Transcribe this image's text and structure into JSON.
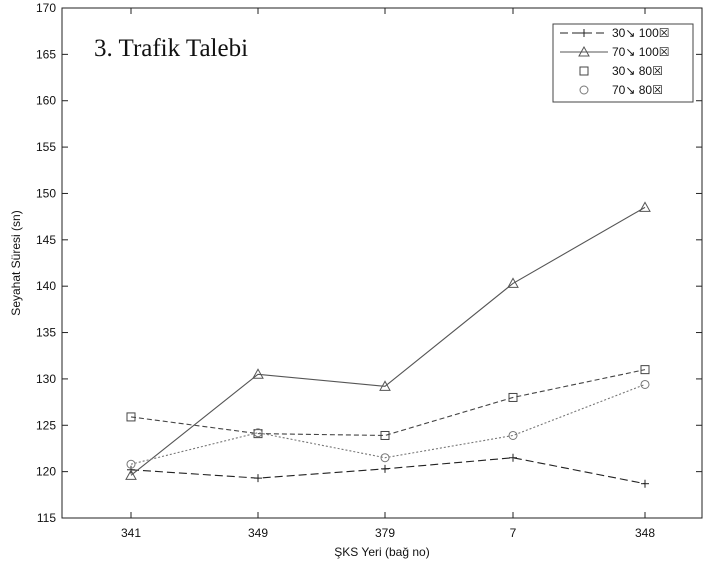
{
  "chart_data": {
    "type": "line",
    "title": "3. Trafik Talebi",
    "xlabel": "ŞKS Yeri (bağ no)",
    "ylabel": "Seyahat Süresi (sn)",
    "categories": [
      "341",
      "349",
      "379",
      "7",
      "348"
    ],
    "ylim": [
      115,
      170
    ],
    "yticks": [
      115,
      120,
      125,
      130,
      135,
      140,
      145,
      150,
      155,
      160,
      165,
      170
    ],
    "ytick_labels": [
      "115",
      "120",
      "125",
      "130",
      "135",
      "140",
      "145",
      "150",
      "155",
      "160",
      "165",
      "170"
    ],
    "grid": false,
    "legend_position": "top-right",
    "series": [
      {
        "name": "30↘ 100☒",
        "marker": "plus",
        "dash": "8,4",
        "color": "#222222",
        "values": [
          120.2,
          119.3,
          120.3,
          121.5,
          118.7
        ]
      },
      {
        "name": "70↘ 100☒",
        "marker": "triangle",
        "dash": "",
        "color": "#555555",
        "values": [
          119.6,
          130.5,
          129.2,
          140.3,
          148.5
        ]
      },
      {
        "name": "30↘ 80☒",
        "marker": "square",
        "dash": "5,3",
        "color": "#444444",
        "values": [
          125.9,
          124.1,
          123.9,
          128.0,
          131.0
        ]
      },
      {
        "name": "70↘ 80☒",
        "marker": "circle",
        "dash": "2,2",
        "color": "#777777",
        "values": [
          120.8,
          124.2,
          121.5,
          123.9,
          129.4
        ]
      }
    ]
  }
}
